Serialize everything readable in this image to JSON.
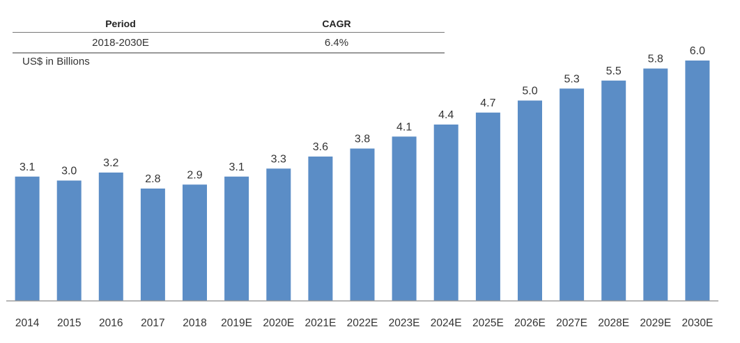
{
  "table": {
    "headers": [
      "Period",
      "CAGR"
    ],
    "row": [
      "2018-2030E",
      "6.4%"
    ]
  },
  "unit_label": "US$ in Billions",
  "colors": {
    "bar": "#5b8dc6",
    "axis": "#9a9a9a",
    "text": "#333333"
  },
  "chart_data": {
    "type": "bar",
    "title": "",
    "xlabel": "",
    "ylabel": "US$ in Billions",
    "categories": [
      "2014",
      "2015",
      "2016",
      "2017",
      "2018",
      "2019E",
      "2020E",
      "2021E",
      "2022E",
      "2023E",
      "2024E",
      "2025E",
      "2026E",
      "2027E",
      "2028E",
      "2029E",
      "2030E"
    ],
    "values": [
      3.1,
      3.0,
      3.2,
      2.8,
      2.9,
      3.1,
      3.3,
      3.6,
      3.8,
      4.1,
      4.4,
      4.7,
      5.0,
      5.3,
      5.5,
      5.8,
      6.0
    ],
    "value_labels": [
      "3.1",
      "3.0",
      "3.2",
      "2.8",
      "2.9",
      "3.1",
      "3.3",
      "3.6",
      "3.8",
      "4.1",
      "4.4",
      "4.7",
      "5.0",
      "5.3",
      "5.5",
      "5.8",
      "6.0"
    ],
    "ylim": [
      0,
      6.0
    ],
    "grid": false,
    "data_labels": true
  }
}
